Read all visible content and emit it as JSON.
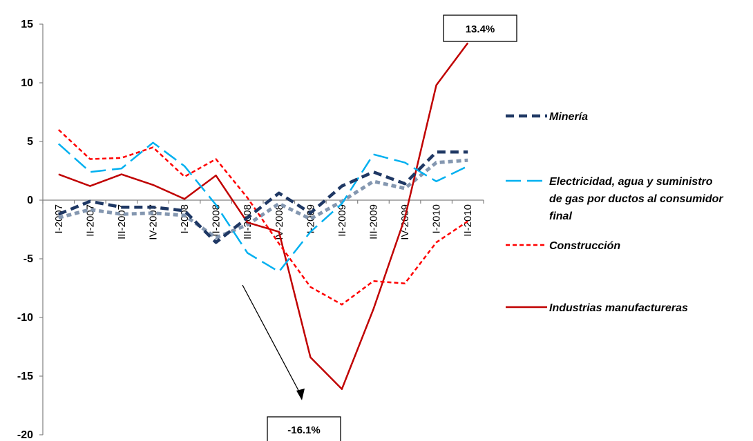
{
  "chart_data": {
    "type": "line",
    "categories": [
      "I-2007",
      "II-2007",
      "III-2007",
      "IV-2007",
      "I-2008",
      "II-2008",
      "III-2008",
      "IV-2008",
      "I-2009",
      "II-2009",
      "III-2009",
      "IV-2009",
      "I-2010",
      "II-2010"
    ],
    "ylim": [
      -20,
      15
    ],
    "yticks": [
      15,
      10,
      5,
      0,
      -5,
      -10,
      -15,
      -20
    ],
    "grid": false,
    "legend_position": "right",
    "series": [
      {
        "name": "Minería",
        "color": "#1f3864",
        "dash": "dashed",
        "values": [
          -1.2,
          -0.1,
          -0.6,
          -0.6,
          -0.9,
          -3.6,
          -1.5,
          0.6,
          -1.1,
          1.2,
          2.4,
          1.4,
          4.1,
          4.1
        ]
      },
      {
        "name": "Electricidad, agua y suministro de gas por ductos al consumidor final",
        "color": "#00b0f0",
        "dash": "long-dashed",
        "values": [
          4.8,
          2.4,
          2.7,
          4.9,
          2.9,
          -0.4,
          -4.5,
          -6.1,
          -2.7,
          -0.3,
          3.9,
          3.2,
          1.6,
          2.9
        ]
      },
      {
        "name": "Construcción",
        "color": "#ff0000",
        "dash": "dotted",
        "values": [
          6.0,
          3.5,
          3.6,
          4.5,
          2.0,
          3.5,
          0.2,
          -3.7,
          -7.4,
          -8.9,
          -6.9,
          -7.1,
          -3.6,
          -1.8
        ]
      },
      {
        "name": "Industrias manufactureras",
        "color": "#c00000",
        "dash": "solid",
        "values": [
          2.2,
          1.2,
          2.2,
          1.3,
          0.1,
          2.1,
          -1.9,
          -2.7,
          -13.4,
          -16.1,
          -9.3,
          -1.5,
          9.8,
          13.4
        ]
      }
    ],
    "shadow_series": {
      "color": "#8497b0",
      "values": [
        -1.5,
        -0.8,
        -1.2,
        -1.1,
        -1.3,
        -3.2,
        -2.1,
        -0.3,
        -1.6,
        -0.1,
        1.6,
        1.0,
        3.2,
        3.4
      ]
    },
    "annotations": [
      {
        "label": "13.4%"
      },
      {
        "label": "-16.1%"
      }
    ]
  }
}
